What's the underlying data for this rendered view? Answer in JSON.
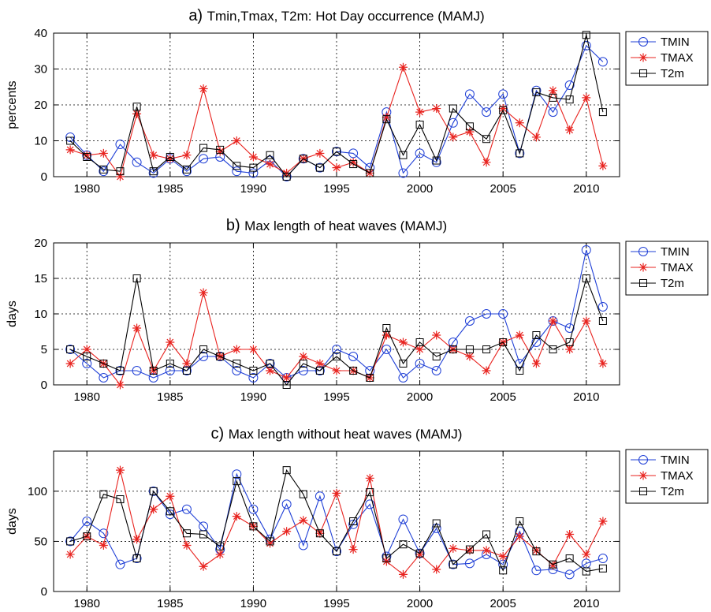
{
  "chart_data": [
    {
      "type": "line",
      "panel": "a)",
      "title": "Tmin,Tmax, T2m: Hot Day occurrence (MAMJ)",
      "ylabel": "percents",
      "xlabel": "",
      "xlim": [
        1978,
        2012
      ],
      "ylim": [
        0,
        40
      ],
      "yticks": [
        0,
        10,
        20,
        30,
        40
      ],
      "xticks": [
        1980,
        1985,
        1990,
        1995,
        2000,
        2005,
        2010
      ],
      "grid": true,
      "legend_position": "outside-right",
      "x": [
        1979,
        1980,
        1981,
        1982,
        1983,
        1984,
        1985,
        1986,
        1987,
        1988,
        1989,
        1990,
        1991,
        1992,
        1993,
        1994,
        1995,
        1996,
        1997,
        1998,
        1999,
        2000,
        2001,
        2002,
        2003,
        2004,
        2005,
        2006,
        2007,
        2008,
        2009,
        2010,
        2011
      ],
      "series": [
        {
          "name": "TMIN",
          "color": "#1f3fd6",
          "marker": "circle",
          "values": [
            11,
            6,
            1.5,
            9,
            4,
            1,
            5,
            1.5,
            5,
            5.5,
            1.5,
            1,
            4.5,
            0,
            5,
            2.5,
            7,
            6.5,
            2.5,
            18,
            1,
            6.5,
            4,
            15,
            23,
            18,
            23,
            6.5,
            24,
            18,
            25.5,
            36.5,
            32
          ]
        },
        {
          "name": "TMAX",
          "color": "#e8231f",
          "marker": "star",
          "values": [
            7.5,
            6,
            6.5,
            0,
            17.5,
            6,
            5,
            6,
            24.5,
            7,
            10,
            5.5,
            3.5,
            1,
            5,
            6.5,
            2.5,
            4,
            1,
            16.5,
            30.5,
            18,
            19,
            11,
            12.5,
            4,
            19,
            15,
            11,
            24,
            13,
            22,
            3
          ]
        },
        {
          "name": "T2m",
          "color": "#000000",
          "marker": "square",
          "values": [
            10,
            5.5,
            2,
            1.5,
            19.5,
            1.5,
            5.5,
            2,
            8,
            7.5,
            3,
            2.5,
            6,
            0,
            5,
            2.5,
            7,
            3.5,
            1,
            16,
            6,
            14.5,
            4.5,
            19,
            14,
            10.5,
            18.5,
            6.5,
            23.5,
            22,
            21.5,
            39.5,
            18
          ]
        }
      ]
    },
    {
      "type": "line",
      "panel": "b)",
      "title": "Max length of heat waves (MAMJ)",
      "ylabel": "days",
      "xlabel": "",
      "xlim": [
        1978,
        2012
      ],
      "ylim": [
        0,
        20
      ],
      "yticks": [
        0,
        5,
        10,
        15,
        20
      ],
      "xticks": [
        1980,
        1985,
        1990,
        1995,
        2000,
        2005,
        2010
      ],
      "grid": true,
      "legend_position": "outside-right",
      "x": [
        1979,
        1980,
        1981,
        1982,
        1983,
        1984,
        1985,
        1986,
        1987,
        1988,
        1989,
        1990,
        1991,
        1992,
        1993,
        1994,
        1995,
        1996,
        1997,
        1998,
        1999,
        2000,
        2001,
        2002,
        2003,
        2004,
        2005,
        2006,
        2007,
        2008,
        2009,
        2010,
        2011
      ],
      "series": [
        {
          "name": "TMIN",
          "color": "#1f3fd6",
          "marker": "circle",
          "values": [
            5,
            3,
            1,
            2,
            2,
            1,
            2,
            2,
            4,
            4,
            2,
            1,
            3,
            1,
            2,
            2,
            5,
            4,
            2,
            5,
            1,
            3,
            2,
            6,
            9,
            10,
            10,
            3,
            6,
            9,
            8,
            19,
            11
          ]
        },
        {
          "name": "TMAX",
          "color": "#e8231f",
          "marker": "star",
          "values": [
            3,
            5,
            3,
            0,
            8,
            2,
            6,
            3,
            13,
            4,
            5,
            5,
            2,
            1,
            4,
            3,
            2,
            2,
            1,
            7,
            6,
            5,
            7,
            5,
            4,
            2,
            6,
            7,
            3,
            9,
            5,
            9,
            3
          ]
        },
        {
          "name": "T2m",
          "color": "#000000",
          "marker": "square",
          "values": [
            5,
            4,
            3,
            2,
            15,
            2,
            3,
            2,
            5,
            4,
            3,
            2,
            3,
            0,
            3,
            2,
            4,
            2,
            1,
            8,
            3,
            6,
            4,
            5,
            5,
            5,
            6,
            2,
            7,
            5,
            6,
            15,
            9
          ]
        }
      ]
    },
    {
      "type": "line",
      "panel": "c)",
      "title": "Max length without heat waves (MAMJ)",
      "ylabel": "days",
      "xlabel": "",
      "xlim": [
        1978,
        2012
      ],
      "ylim": [
        0,
        140
      ],
      "yticks": [
        0,
        50,
        100
      ],
      "xticks": [
        1980,
        1985,
        1990,
        1995,
        2000,
        2005,
        2010
      ],
      "grid": true,
      "legend_position": "outside-right",
      "x": [
        1979,
        1980,
        1981,
        1982,
        1983,
        1984,
        1985,
        1986,
        1987,
        1988,
        1989,
        1990,
        1991,
        1992,
        1993,
        1994,
        1995,
        1996,
        1997,
        1998,
        1999,
        2000,
        2001,
        2002,
        2003,
        2004,
        2005,
        2006,
        2007,
        2008,
        2009,
        2010,
        2011
      ],
      "series": [
        {
          "name": "TMIN",
          "color": "#1f3fd6",
          "marker": "circle",
          "values": [
            50,
            70,
            58,
            27,
            33,
            100,
            77,
            82,
            65,
            42,
            117,
            82,
            52,
            87,
            46,
            95,
            40,
            67,
            87,
            35,
            72,
            38,
            63,
            27,
            28,
            37,
            27,
            60,
            21,
            22,
            17,
            28,
            33
          ]
        },
        {
          "name": "TMAX",
          "color": "#e8231f",
          "marker": "star",
          "values": [
            37,
            55,
            46,
            121,
            52,
            82,
            95,
            46,
            25,
            37,
            75,
            65,
            48,
            60,
            71,
            58,
            98,
            42,
            113,
            30,
            17,
            37,
            22,
            43,
            41,
            41,
            35,
            55,
            41,
            26,
            57,
            37,
            70
          ]
        },
        {
          "name": "T2m",
          "color": "#000000",
          "marker": "square",
          "values": [
            50,
            55,
            97,
            92,
            33,
            100,
            80,
            58,
            57,
            45,
            110,
            65,
            50,
            121,
            97,
            58,
            40,
            70,
            99,
            33,
            47,
            38,
            68,
            27,
            42,
            57,
            21,
            70,
            40,
            27,
            33,
            20,
            23
          ]
        }
      ]
    }
  ]
}
